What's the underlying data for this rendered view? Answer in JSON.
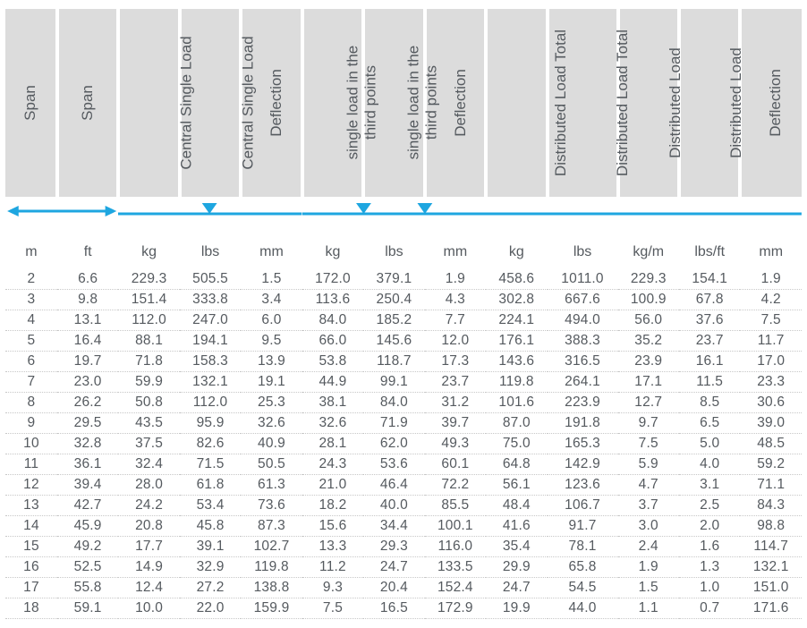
{
  "colors": {
    "header_bg": "#dcdcdc",
    "text": "#555a5f",
    "accent": "#1ea6e0",
    "row_border": "#c8c8c8",
    "background": "#ffffff"
  },
  "fonts": {
    "header_size_pt": 13,
    "units_size_pt": 12,
    "data_size_pt": 12,
    "family": "Arial"
  },
  "headers": {
    "c0": "Span",
    "c1": "Span",
    "c2": "Central Single Load",
    "c3": "Central Single Load",
    "c4": "Deflection",
    "c5a": "single load in the",
    "c5b": "third points",
    "c6a": "single load in the",
    "c6b": "third points",
    "c7": "Deflection",
    "c8": "Distributed Load Total",
    "c9": "Distributed Load Total",
    "c10": "Distributed Load",
    "c11": "Distributed Load",
    "c12": "Deflection"
  },
  "units": {
    "c0": "m",
    "c1": "ft",
    "c2": "kg",
    "c3": "lbs",
    "c4": "mm",
    "c5": "kg",
    "c6": "lbs",
    "c7": "mm",
    "c8": "kg",
    "c9": "lbs",
    "c10": "kg/m",
    "c11": "lbs/ft",
    "c12": "mm"
  },
  "rows": [
    {
      "c0": "2",
      "c1": "6.6",
      "c2": "229.3",
      "c3": "505.5",
      "c4": "1.5",
      "c5": "172.0",
      "c6": "379.1",
      "c7": "1.9",
      "c8": "458.6",
      "c9": "1011.0",
      "c10": "229.3",
      "c11": "154.1",
      "c12": "1.9"
    },
    {
      "c0": "3",
      "c1": "9.8",
      "c2": "151.4",
      "c3": "333.8",
      "c4": "3.4",
      "c5": "113.6",
      "c6": "250.4",
      "c7": "4.3",
      "c8": "302.8",
      "c9": "667.6",
      "c10": "100.9",
      "c11": "67.8",
      "c12": "4.2"
    },
    {
      "c0": "4",
      "c1": "13.1",
      "c2": "112.0",
      "c3": "247.0",
      "c4": "6.0",
      "c5": "84.0",
      "c6": "185.2",
      "c7": "7.7",
      "c8": "224.1",
      "c9": "494.0",
      "c10": "56.0",
      "c11": "37.6",
      "c12": "7.5"
    },
    {
      "c0": "5",
      "c1": "16.4",
      "c2": "88.1",
      "c3": "194.1",
      "c4": "9.5",
      "c5": "66.0",
      "c6": "145.6",
      "c7": "12.0",
      "c8": "176.1",
      "c9": "388.3",
      "c10": "35.2",
      "c11": "23.7",
      "c12": "11.7"
    },
    {
      "c0": "6",
      "c1": "19.7",
      "c2": "71.8",
      "c3": "158.3",
      "c4": "13.9",
      "c5": "53.8",
      "c6": "118.7",
      "c7": "17.3",
      "c8": "143.6",
      "c9": "316.5",
      "c10": "23.9",
      "c11": "16.1",
      "c12": "17.0"
    },
    {
      "c0": "7",
      "c1": "23.0",
      "c2": "59.9",
      "c3": "132.1",
      "c4": "19.1",
      "c5": "44.9",
      "c6": "99.1",
      "c7": "23.7",
      "c8": "119.8",
      "c9": "264.1",
      "c10": "17.1",
      "c11": "11.5",
      "c12": "23.3"
    },
    {
      "c0": "8",
      "c1": "26.2",
      "c2": "50.8",
      "c3": "112.0",
      "c4": "25.3",
      "c5": "38.1",
      "c6": "84.0",
      "c7": "31.2",
      "c8": "101.6",
      "c9": "223.9",
      "c10": "12.7",
      "c11": "8.5",
      "c12": "30.6"
    },
    {
      "c0": "9",
      "c1": "29.5",
      "c2": "43.5",
      "c3": "95.9",
      "c4": "32.6",
      "c5": "32.6",
      "c6": "71.9",
      "c7": "39.7",
      "c8": "87.0",
      "c9": "191.8",
      "c10": "9.7",
      "c11": "6.5",
      "c12": "39.0"
    },
    {
      "c0": "10",
      "c1": "32.8",
      "c2": "37.5",
      "c3": "82.6",
      "c4": "40.9",
      "c5": "28.1",
      "c6": "62.0",
      "c7": "49.3",
      "c8": "75.0",
      "c9": "165.3",
      "c10": "7.5",
      "c11": "5.0",
      "c12": "48.5"
    },
    {
      "c0": "11",
      "c1": "36.1",
      "c2": "32.4",
      "c3": "71.5",
      "c4": "50.5",
      "c5": "24.3",
      "c6": "53.6",
      "c7": "60.1",
      "c8": "64.8",
      "c9": "142.9",
      "c10": "5.9",
      "c11": "4.0",
      "c12": "59.2"
    },
    {
      "c0": "12",
      "c1": "39.4",
      "c2": "28.0",
      "c3": "61.8",
      "c4": "61.3",
      "c5": "21.0",
      "c6": "46.4",
      "c7": "72.2",
      "c8": "56.1",
      "c9": "123.6",
      "c10": "4.7",
      "c11": "3.1",
      "c12": "71.1"
    },
    {
      "c0": "13",
      "c1": "42.7",
      "c2": "24.2",
      "c3": "53.4",
      "c4": "73.6",
      "c5": "18.2",
      "c6": "40.0",
      "c7": "85.5",
      "c8": "48.4",
      "c9": "106.7",
      "c10": "3.7",
      "c11": "2.5",
      "c12": "84.3"
    },
    {
      "c0": "14",
      "c1": "45.9",
      "c2": "20.8",
      "c3": "45.8",
      "c4": "87.3",
      "c5": "15.6",
      "c6": "34.4",
      "c7": "100.1",
      "c8": "41.6",
      "c9": "91.7",
      "c10": "3.0",
      "c11": "2.0",
      "c12": "98.8"
    },
    {
      "c0": "15",
      "c1": "49.2",
      "c2": "17.7",
      "c3": "39.1",
      "c4": "102.7",
      "c5": "13.3",
      "c6": "29.3",
      "c7": "116.0",
      "c8": "35.4",
      "c9": "78.1",
      "c10": "2.4",
      "c11": "1.6",
      "c12": "114.7"
    },
    {
      "c0": "16",
      "c1": "52.5",
      "c2": "14.9",
      "c3": "32.9",
      "c4": "119.8",
      "c5": "11.2",
      "c6": "24.7",
      "c7": "133.5",
      "c8": "29.9",
      "c9": "65.8",
      "c10": "1.9",
      "c11": "1.3",
      "c12": "132.1"
    },
    {
      "c0": "17",
      "c1": "55.8",
      "c2": "12.4",
      "c3": "27.2",
      "c4": "138.8",
      "c5": "9.3",
      "c6": "20.4",
      "c7": "152.4",
      "c8": "24.7",
      "c9": "54.5",
      "c10": "1.5",
      "c11": "1.0",
      "c12": "151.0"
    },
    {
      "c0": "18",
      "c1": "59.1",
      "c2": "10.0",
      "c3": "22.0",
      "c4": "159.9",
      "c5": "7.5",
      "c6": "16.5",
      "c7": "172.9",
      "c8": "19.9",
      "c9": "44.0",
      "c10": "1.1",
      "c11": "0.7",
      "c12": "171.6"
    }
  ]
}
